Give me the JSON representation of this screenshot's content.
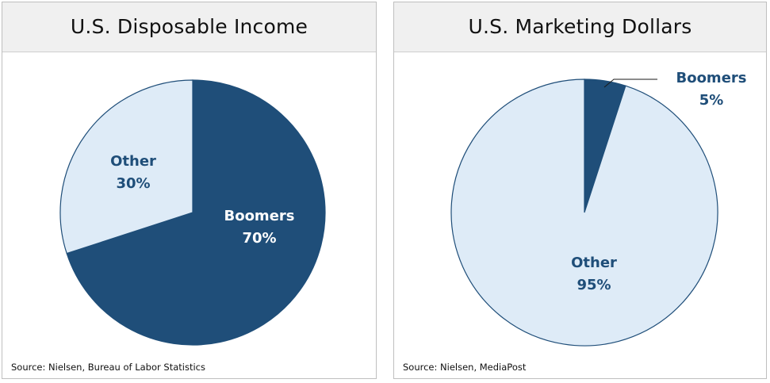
{
  "colors": {
    "boomers": "#1f4e79",
    "other": "#deebf7",
    "outline": "#1f4e79"
  },
  "chart_data": [
    {
      "type": "pie",
      "title": "U.S. Disposable Income",
      "source": "Source: Nielsen, Bureau of Labor Statistics",
      "slices": [
        {
          "label": "Boomers",
          "value": 70,
          "value_label": "70%"
        },
        {
          "label": "Other",
          "value": 30,
          "value_label": "30%"
        }
      ]
    },
    {
      "type": "pie",
      "title": "U.S. Marketing Dollars",
      "source": "Source: Nielsen, MediaPost",
      "slices": [
        {
          "label": "Boomers",
          "value": 5,
          "value_label": "5%"
        },
        {
          "label": "Other",
          "value": 95,
          "value_label": "95%"
        }
      ]
    }
  ]
}
